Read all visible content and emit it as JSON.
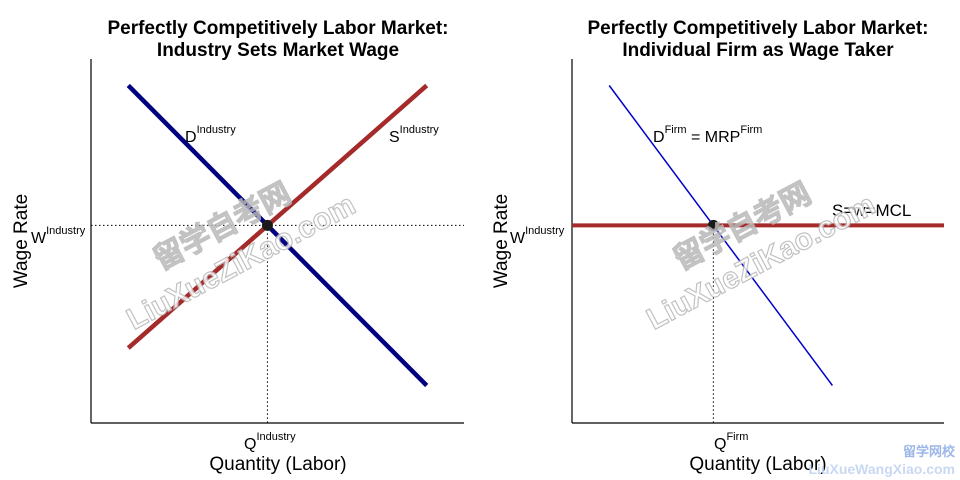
{
  "chart_data": [
    {
      "type": "line",
      "title_line1": "Perfectly Competitively Labor Market:",
      "title_line2": "Industry Sets Market Wage",
      "xlabel": "Quantity (Labor)",
      "ylabel": "Wage Rate",
      "xlim": [
        0,
        10
      ],
      "ylim": [
        0,
        10
      ],
      "series": [
        {
          "label_base": "D",
          "label_sup": "Industry",
          "color": "#000080",
          "x": [
            1,
            9
          ],
          "y": [
            9,
            1
          ]
        },
        {
          "label_base": "S",
          "label_sup": "Industry",
          "color": "#a52a2a",
          "x": [
            1,
            9
          ],
          "y": [
            2,
            9
          ]
        }
      ],
      "equilibrium": {
        "x": 4.73,
        "y": 5.27
      },
      "w_label_base": "W",
      "w_label_sup": "Industry",
      "q_label_base": "Q",
      "q_label_sup": "Industry"
    },
    {
      "type": "line",
      "title_line1": "Perfectly Competitively Labor Market:",
      "title_line2": "Individual Firm as Wage Taker",
      "xlabel": "Quantity (Labor)",
      "ylabel": "Wage Rate",
      "xlim": [
        0,
        10
      ],
      "ylim": [
        0,
        10
      ],
      "series": [
        {
          "label_base": "D",
          "label_sup": "Firm",
          "label_rest": " = MRP",
          "label_sup2": "Firm",
          "color": "#0000cd",
          "x": [
            1,
            7
          ],
          "y": [
            9,
            1
          ]
        },
        {
          "label": "S=w=MCL",
          "color": "#a52a2a",
          "x": [
            0,
            10
          ],
          "y": [
            5.27,
            5.27
          ]
        }
      ],
      "equilibrium": {
        "x": 3.8,
        "y": 5.27
      },
      "w_label_base": "W",
      "w_label_sup": "Industry",
      "q_label_base": "Q",
      "q_label_sup": "Firm"
    }
  ],
  "watermark": {
    "cn": "留学自考网",
    "latin": "LiuXueZiKao.com",
    "corner_cn": "留学网校",
    "corner_latin": "LiuXueWangXiao.com"
  }
}
